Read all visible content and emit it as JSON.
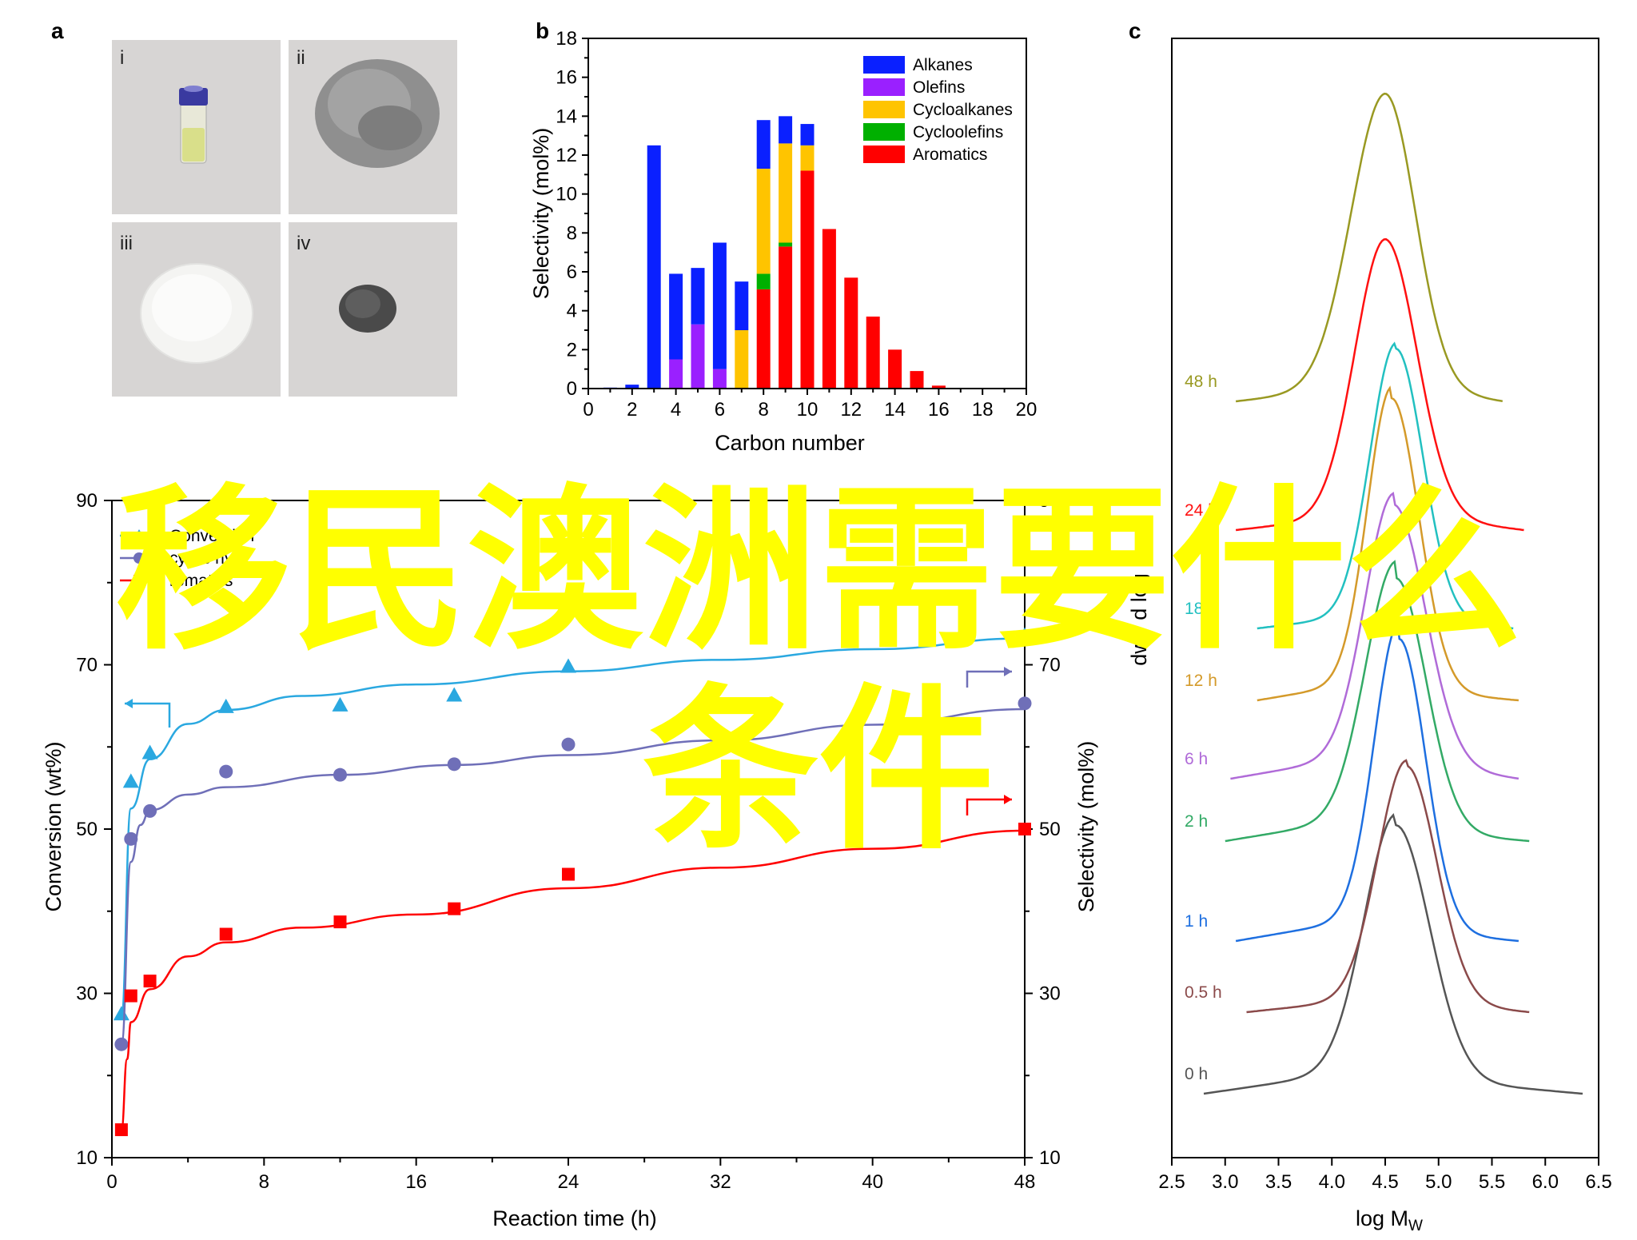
{
  "panels": {
    "a": "a",
    "b": "b",
    "c": "c"
  },
  "photos": {
    "labels": [
      "i",
      "ii",
      "iii",
      "iv"
    ],
    "colors": {
      "bg": "#d7d5d4",
      "vial_cap": "#3a3aa0",
      "liquid": "#d9df8a",
      "powder_grey": "#8f8f8f",
      "powder_white": "#f4f4f2",
      "powder_dark": "#4a4a4a"
    }
  },
  "watermark": {
    "line1": "移民澳洲需要什么",
    "line2": "条件",
    "color": "#ffff00"
  },
  "chart_data": [
    {
      "id": "b",
      "type": "bar",
      "xlabel": "Carbon number",
      "ylabel": "Selectivity (mol%)",
      "xlim": [
        0,
        20
      ],
      "ylim": [
        0,
        18
      ],
      "xticks": [
        0,
        2,
        4,
        6,
        8,
        10,
        12,
        14,
        16,
        18,
        20
      ],
      "yticks": [
        0,
        2,
        4,
        6,
        8,
        10,
        12,
        14,
        16,
        18
      ],
      "legend_position": "top-right",
      "stacked": true,
      "categories": [
        1,
        2,
        3,
        4,
        5,
        6,
        7,
        8,
        9,
        10,
        11,
        12,
        13,
        14,
        15,
        16
      ],
      "series": [
        {
          "name": "Aromatics",
          "color": "#ff0000",
          "values": [
            0,
            0,
            0,
            0,
            0,
            0,
            0,
            5.1,
            7.3,
            11.2,
            8.2,
            5.7,
            3.7,
            2.0,
            0.9,
            0.15
          ]
        },
        {
          "name": "Cycloolefins",
          "color": "#00b000",
          "values": [
            0,
            0,
            0,
            0,
            0,
            0,
            0,
            0.8,
            0.2,
            0,
            0,
            0,
            0,
            0,
            0,
            0
          ]
        },
        {
          "name": "Cycloalkanes",
          "color": "#ffc400",
          "values": [
            0,
            0,
            0,
            0,
            0,
            0,
            3.0,
            5.4,
            5.1,
            1.3,
            0,
            0,
            0,
            0,
            0,
            0
          ]
        },
        {
          "name": "Olefins",
          "color": "#9a20ff",
          "values": [
            0,
            0,
            0,
            1.5,
            3.3,
            1.0,
            0,
            0,
            0,
            0,
            0,
            0,
            0,
            0,
            0,
            0
          ]
        },
        {
          "name": "Alkanes",
          "color": "#0a20ff",
          "values": [
            0.05,
            0.2,
            12.5,
            4.4,
            2.9,
            6.5,
            2.5,
            2.5,
            1.4,
            1.1,
            0,
            0,
            0,
            0,
            0,
            0
          ]
        }
      ],
      "legend_order": [
        "Alkanes",
        "Olefins",
        "Cycloalkanes",
        "Cycloolefins",
        "Aromatics"
      ]
    },
    {
      "id": "d",
      "type": "scatter",
      "xlabel": "Reaction time (h)",
      "ylabel": "Conversion (wt%)",
      "ylabel_right": "Selectivity (mol%)",
      "xlim": [
        0,
        48
      ],
      "ylim": [
        10,
        90
      ],
      "xticks": [
        0,
        8,
        16,
        24,
        32,
        40,
        48
      ],
      "yticks": [
        10,
        30,
        50,
        70,
        90
      ],
      "yticks_right": [
        10,
        30,
        50,
        70,
        90
      ],
      "legend_visible": [
        "Conversion",
        "cyclic hy",
        "romatics"
      ],
      "series": [
        {
          "name": "Conversion",
          "color": "#2aa8e0",
          "marker": "triangle",
          "x": [
            0.5,
            1,
            2,
            6,
            12,
            18,
            24,
            48
          ],
          "y": [
            27.5,
            55.8,
            59.3,
            64.9,
            65.1,
            66.3,
            69.8,
            73.6
          ],
          "fit": [
            [
              0.5,
              27.5
            ],
            [
              1,
              52.5
            ],
            [
              2,
              58.5
            ],
            [
              4,
              62.8
            ],
            [
              6,
              64.5
            ],
            [
              10,
              66.2
            ],
            [
              16,
              67.6
            ],
            [
              24,
              69.2
            ],
            [
              32,
              70.6
            ],
            [
              40,
              71.9
            ],
            [
              48,
              73.2
            ]
          ]
        },
        {
          "name": "cyclic hy",
          "color": "#6f6fb8",
          "marker": "circle",
          "x": [
            0.5,
            1,
            2,
            6,
            12,
            18,
            24,
            48
          ],
          "y": [
            23.8,
            48.8,
            52.2,
            57.0,
            56.6,
            57.9,
            60.3,
            65.3
          ],
          "fit": [
            [
              0.5,
              23.8
            ],
            [
              1,
              46.0
            ],
            [
              1.5,
              50.5
            ],
            [
              2,
              52.3
            ],
            [
              4,
              54.2
            ],
            [
              6,
              55.1
            ],
            [
              12,
              56.6
            ],
            [
              18,
              57.8
            ],
            [
              24,
              59.0
            ],
            [
              32,
              60.8
            ],
            [
              40,
              62.7
            ],
            [
              48,
              64.6
            ]
          ]
        },
        {
          "name": "romatics",
          "color": "#ff0000",
          "marker": "square",
          "x": [
            0.5,
            1,
            2,
            6,
            12,
            18,
            24,
            48
          ],
          "y": [
            13.4,
            29.7,
            31.5,
            37.2,
            38.7,
            40.3,
            44.5,
            50.0
          ],
          "fit": [
            [
              0.5,
              13.4
            ],
            [
              0.8,
              22.0
            ],
            [
              1,
              26.5
            ],
            [
              2,
              30.5
            ],
            [
              4,
              34.5
            ],
            [
              6,
              36.2
            ],
            [
              10,
              38.0
            ],
            [
              16,
              39.6
            ],
            [
              24,
              42.8
            ],
            [
              32,
              45.3
            ],
            [
              40,
              47.6
            ],
            [
              48,
              49.8
            ]
          ]
        }
      ]
    },
    {
      "id": "c",
      "type": "line",
      "xlabel": "log M",
      "xlabel_sub": "W",
      "ylabel": "dw / d log M",
      "xlim": [
        2.5,
        6.5
      ],
      "xticks": [
        2.5,
        3.0,
        3.5,
        4.0,
        4.5,
        5.0,
        5.5,
        6.0,
        6.5
      ],
      "series": [
        {
          "name": "0 h",
          "color": "#555555",
          "start": 2.8,
          "end": 6.35,
          "peak": 4.6,
          "wl": 0.42,
          "wr": 0.45,
          "amp": 0.45,
          "tailL": 0.05,
          "tailR": 0.03
        },
        {
          "name": "0.5 h",
          "color": "#8b4a4a",
          "start": 3.2,
          "end": 5.85,
          "peak": 4.7,
          "wl": 0.38,
          "wr": 0.4,
          "amp": 0.42,
          "tailL": 0.03,
          "tailR": 0.02
        },
        {
          "name": "1 h",
          "color": "#1e6fe0",
          "start": 3.1,
          "end": 5.75,
          "peak": 4.63,
          "wl": 0.33,
          "wr": 0.35,
          "amp": 0.52,
          "tailL": 0.05,
          "tailR": 0.02
        },
        {
          "name": "2 h",
          "color": "#33aa66",
          "start": 3.0,
          "end": 5.85,
          "peak": 4.6,
          "wl": 0.4,
          "wr": 0.4,
          "amp": 0.45,
          "tailL": 0.05,
          "tailR": 0.02
        },
        {
          "name": "6 h",
          "color": "#b06bd8",
          "start": 3.05,
          "end": 5.75,
          "peak": 4.58,
          "wl": 0.38,
          "wr": 0.42,
          "amp": 0.46,
          "tailL": 0.05,
          "tailR": 0.03
        },
        {
          "name": "12 h",
          "color": "#d49a2a",
          "start": 3.3,
          "end": 5.75,
          "peak": 4.56,
          "wl": 0.32,
          "wr": 0.36,
          "amp": 0.52,
          "tailL": 0.04,
          "tailR": 0.02
        },
        {
          "name": "18 h",
          "color": "#22c0c0",
          "start": 3.3,
          "end": 5.7,
          "peak": 4.6,
          "wl": 0.34,
          "wr": 0.36,
          "amp": 0.48,
          "tailL": 0.03,
          "tailR": 0.02
        },
        {
          "name": "24 h",
          "color": "#ff1010",
          "start": 3.1,
          "end": 5.8,
          "peak": 4.5,
          "wl": 0.4,
          "wr": 0.42,
          "amp": 0.49,
          "tailL": 0.03,
          "tailR": 0.03
        },
        {
          "name": "48 h",
          "color": "#999922",
          "start": 3.1,
          "end": 5.6,
          "peak": 4.5,
          "wl": 0.45,
          "wr": 0.4,
          "amp": 0.52,
          "tailL": 0.03,
          "tailR": 0.03
        }
      ]
    }
  ]
}
